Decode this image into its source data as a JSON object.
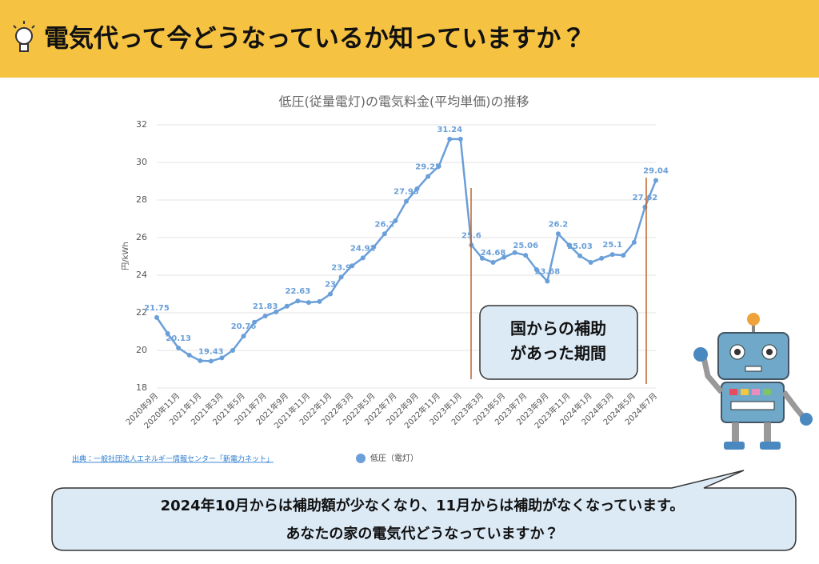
{
  "header": {
    "title": "電気代って今どうなっているか知っていますか？"
  },
  "chart_data": {
    "type": "line",
    "title": "低圧(従量電灯)の電気料金(平均単価)の推移",
    "y_label": "円/kWh",
    "source": "出典：一般社団法人エネルギー情報センター「新電力ネット」",
    "categories": [
      "2020年9月",
      null,
      "2020年11月",
      null,
      "2021年1月",
      null,
      "2021年3月",
      null,
      "2021年5月",
      null,
      "2021年7月",
      null,
      "2021年9月",
      null,
      "2021年11月",
      null,
      "2022年1月",
      null,
      "2022年3月",
      null,
      "2022年5月",
      null,
      "2022年7月",
      null,
      "2022年9月",
      null,
      "2022年11月",
      null,
      "2023年1月",
      null,
      "2023年3月",
      null,
      "2023年5月",
      null,
      "2023年7月",
      null,
      "2023年9月",
      null,
      "2023年11月",
      null,
      "2024年1月",
      null,
      "2024年3月",
      null,
      "2024年5月",
      null,
      "2024年7月"
    ],
    "series": [
      {
        "name": "低圧（電灯）",
        "color": "#6a9fd8",
        "values": [
          21.75,
          20.9,
          20.13,
          19.75,
          19.45,
          19.43,
          19.6,
          20.0,
          20.76,
          21.5,
          21.83,
          22.05,
          22.35,
          22.63,
          22.55,
          22.6,
          23.0,
          23.9,
          24.5,
          24.92,
          25.5,
          26.2,
          26.9,
          27.93,
          28.6,
          29.25,
          29.8,
          31.24,
          31.24,
          25.6,
          24.9,
          24.68,
          24.95,
          25.2,
          25.06,
          24.3,
          23.68,
          26.2,
          25.6,
          25.03,
          24.68,
          24.9,
          25.1,
          25.06,
          25.75,
          27.62,
          29.04
        ],
        "value_labels": [
          "21.75",
          null,
          "20.13",
          null,
          null,
          "19.43",
          null,
          null,
          "20.76",
          null,
          "21.83",
          null,
          null,
          "22.63",
          null,
          null,
          "23",
          "23.9",
          null,
          "24.92",
          null,
          "26.2",
          null,
          "27.93",
          null,
          "29.25",
          null,
          "31.24",
          null,
          "25.6",
          null,
          "24.68",
          null,
          null,
          "25.06",
          null,
          "23.68",
          "26.2",
          null,
          "25.03",
          null,
          null,
          "25.1",
          null,
          null,
          "27.62",
          "29.04"
        ]
      }
    ],
    "ylim": [
      18,
      32
    ],
    "yticks": [
      18,
      20,
      22,
      24,
      26,
      28,
      30,
      32
    ],
    "grid": true
  },
  "callout": {
    "lines": [
      "国からの補助",
      "があった期間"
    ]
  },
  "message": {
    "lines": [
      "2024年10月からは補助額が少なくなり、11月からは補助がなくなっています。",
      "あなたの家の電気代どうなっていますか？"
    ]
  }
}
